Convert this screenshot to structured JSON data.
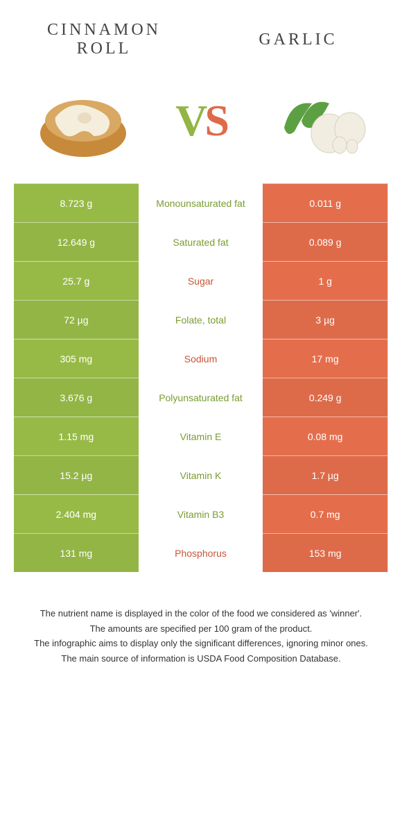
{
  "foods": {
    "left": {
      "title": "Cinnamon Roll",
      "color": "#93b545"
    },
    "right": {
      "title": "Garlic",
      "color": "#dd6b4a"
    }
  },
  "vs": {
    "v": "V",
    "s": "S"
  },
  "colors": {
    "green": "#93b545",
    "orange": "#dd6b4a",
    "mid_green_text": "#7a9c31",
    "mid_orange_text": "#c85535",
    "background": "#ffffff"
  },
  "rows": [
    {
      "left": "8.723 g",
      "label": "Monounsaturated fat",
      "right": "0.011 g",
      "winner": "left"
    },
    {
      "left": "12.649 g",
      "label": "Saturated fat",
      "right": "0.089 g",
      "winner": "left"
    },
    {
      "left": "25.7 g",
      "label": "Sugar",
      "right": "1 g",
      "winner": "right"
    },
    {
      "left": "72 µg",
      "label": "Folate, total",
      "right": "3 µg",
      "winner": "left"
    },
    {
      "left": "305 mg",
      "label": "Sodium",
      "right": "17 mg",
      "winner": "right"
    },
    {
      "left": "3.676 g",
      "label": "Polyunsaturated fat",
      "right": "0.249 g",
      "winner": "left"
    },
    {
      "left": "1.15 mg",
      "label": "Vitamin E",
      "right": "0.08 mg",
      "winner": "left"
    },
    {
      "left": "15.2 µg",
      "label": "Vitamin K",
      "right": "1.7 µg",
      "winner": "left"
    },
    {
      "left": "2.404 mg",
      "label": "Vitamin B3",
      "right": "0.7 mg",
      "winner": "left"
    },
    {
      "left": "131 mg",
      "label": "Phosphorus",
      "right": "153 mg",
      "winner": "right"
    }
  ],
  "footnotes": [
    "The nutrient name is displayed in the color of the food we considered as 'winner'.",
    "The amounts are specified per 100 gram of the product.",
    "The infographic aims to display only the significant differences, ignoring minor ones.",
    "The main source of information is USDA Food Composition Database."
  ]
}
